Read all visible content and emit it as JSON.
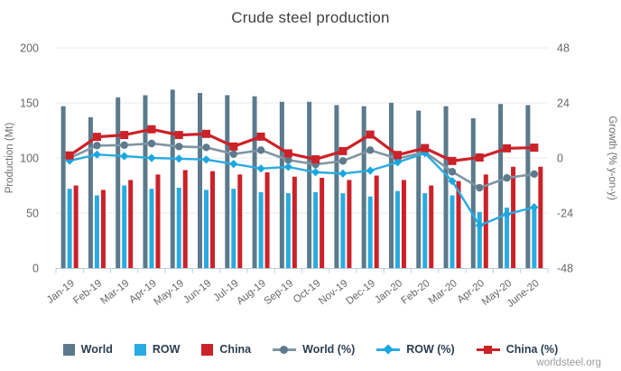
{
  "watermark": "worldsteel.org",
  "colors": {
    "world_bar": "#5b7a8c",
    "row_bar": "#29abe2",
    "china_bar": "#cc2129",
    "world_line": "#7e95a4",
    "world_marker": "#5e7a8c",
    "row_line": "#29abe2",
    "row_marker": "#1aa7e0",
    "china_line": "#cc2129",
    "grid": "#e8e8e8",
    "axis": "#b9cfdf",
    "tick_text": "#666666",
    "axis_title_text": "#6e6e6e",
    "title_text": "#3f3f3f",
    "legend_text": "#2b3e4f",
    "watermark_text": "#9b9b9b"
  },
  "legend": [
    {
      "label": "World",
      "swatch": "square",
      "color": "#5b7a8c",
      "line": "#5b7a8c"
    },
    {
      "label": "ROW",
      "swatch": "square",
      "color": "#29abe2",
      "line": "#29abe2"
    },
    {
      "label": "China",
      "swatch": "square",
      "color": "#cc2129",
      "line": "#cc2129"
    },
    {
      "label": "World (%)",
      "swatch": "line-circle",
      "color": "#5e7a8c",
      "line": "#7e95a4"
    },
    {
      "label": "ROW (%)",
      "swatch": "line-diamond",
      "color": "#1aa7e0",
      "line": "#29abe2"
    },
    {
      "label": "China (%)",
      "swatch": "line-square",
      "color": "#cc2129",
      "line": "#cc2129"
    }
  ],
  "chart_data": {
    "type": "bar",
    "title": "Crude steel production",
    "categories": [
      "Jan-19",
      "Feb-19",
      "Mar-19",
      "Apr-19",
      "May-19",
      "Jun-19",
      "Jul-19",
      "Aug-19",
      "Sep-19",
      "Oct-19",
      "Nov-19",
      "Dec-19",
      "Jan-20",
      "Feb-20",
      "Mar-20",
      "Apr-20",
      "May-20",
      "June-20"
    ],
    "left_axis": {
      "label": "Production (Mt)",
      "ticks": [
        0,
        50,
        100,
        150,
        200
      ],
      "range": [
        0,
        200
      ]
    },
    "right_axis": {
      "label": "Growth (% y-on-y)",
      "ticks": [
        -48,
        -24,
        0,
        24,
        48
      ],
      "range": [
        -48,
        48
      ]
    },
    "grid": "horizontal",
    "legend_position": "bottom",
    "series": [
      {
        "name": "World",
        "kind": "bar",
        "axis": "left",
        "color": "#5b7a8c",
        "values": [
          147,
          137,
          155,
          157,
          162,
          159,
          157,
          156,
          151,
          151,
          148,
          147,
          150,
          143,
          147,
          136,
          149,
          148
        ]
      },
      {
        "name": "ROW",
        "kind": "bar",
        "axis": "left",
        "color": "#29abe2",
        "values": [
          72,
          66,
          75,
          72,
          73,
          71,
          72,
          69,
          68,
          69,
          68,
          65,
          70,
          68,
          66,
          51,
          55,
          56
        ]
      },
      {
        "name": "China",
        "kind": "bar",
        "axis": "left",
        "color": "#cc2129",
        "values": [
          75,
          71,
          80,
          85,
          89,
          88,
          85,
          87,
          83,
          82,
          80,
          84,
          80,
          75,
          79,
          85,
          92,
          92
        ]
      },
      {
        "name": "World (%)",
        "kind": "line",
        "marker": "circle",
        "axis": "right",
        "color": "#7e95a4",
        "marker_color": "#5e7a8c",
        "values": [
          0.0,
          5.4,
          5.6,
          6.3,
          5.0,
          4.6,
          1.7,
          3.4,
          -0.9,
          -2.8,
          -1.3,
          3.4,
          -0.3,
          2.6,
          -6.0,
          -13.0,
          -8.7,
          -7.0
        ]
      },
      {
        "name": "ROW (%)",
        "kind": "line",
        "marker": "diamond",
        "axis": "right",
        "color": "#29abe2",
        "marker_color": "#1aa7e0",
        "values": [
          -1.2,
          1.5,
          0.8,
          0.0,
          -0.3,
          -0.7,
          -2.6,
          -4.6,
          -3.9,
          -6.2,
          -6.8,
          -5.5,
          -1.9,
          2.1,
          -10.1,
          -29.4,
          -24.5,
          -21.5
        ]
      },
      {
        "name": "China (%)",
        "kind": "line",
        "marker": "square",
        "axis": "right",
        "color": "#cc2129",
        "marker_color": "#cc2129",
        "values": [
          1.1,
          9.2,
          10.0,
          12.5,
          10.0,
          10.5,
          5.0,
          9.3,
          2.0,
          -0.6,
          3.0,
          10.2,
          1.3,
          4.3,
          -1.3,
          0.2,
          4.2,
          4.5
        ]
      }
    ]
  }
}
